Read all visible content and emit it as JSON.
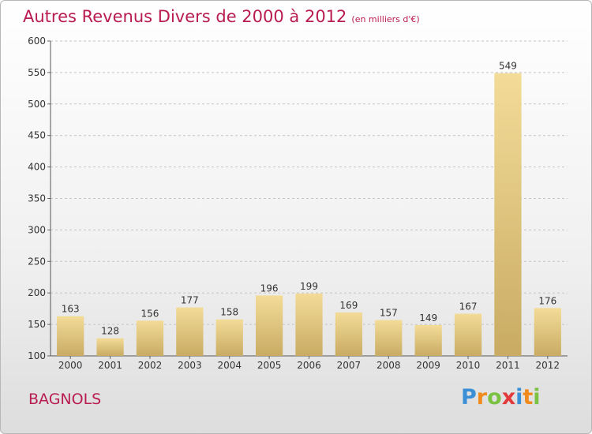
{
  "header": {
    "title": "Autres Revenus Divers de 2000 à 2012",
    "unit": "(en milliers d'€)"
  },
  "footer": {
    "commune": "BAGNOLS",
    "logo_letters": [
      "P",
      "r",
      "o",
      "x",
      "i",
      "t",
      "i"
    ],
    "logo_colors": [
      "#3a8fd6",
      "#f08a1c",
      "#7cc242",
      "#e23a3a",
      "#3a8fd6",
      "#f08a1c",
      "#7cc242"
    ]
  },
  "chart_data": {
    "type": "bar",
    "title": "Autres Revenus Divers de 2000 à 2012",
    "subtitle": "(en milliers d'€)",
    "categories": [
      "2000",
      "2001",
      "2002",
      "2003",
      "2004",
      "2005",
      "2006",
      "2007",
      "2008",
      "2009",
      "2010",
      "2011",
      "2012"
    ],
    "values": [
      163,
      128,
      156,
      177,
      158,
      196,
      199,
      169,
      157,
      149,
      167,
      549,
      176
    ],
    "data_labels": [
      "163",
      "128",
      "156",
      "177",
      "158",
      "196",
      "199",
      "169",
      "157",
      "149",
      "167",
      "549",
      "176"
    ],
    "ylim": [
      100,
      600
    ],
    "yticks": [
      100,
      150,
      200,
      250,
      300,
      350,
      400,
      450,
      500,
      550,
      600
    ],
    "ytick_labels": [
      "100",
      "150",
      "200",
      "250",
      "300",
      "350",
      "400",
      "450",
      "500",
      "550",
      "600"
    ],
    "grid": true,
    "bar_color_light": "#f3dc98",
    "bar_color_dark": "#c9ab63",
    "text_color": "#b81c52"
  }
}
